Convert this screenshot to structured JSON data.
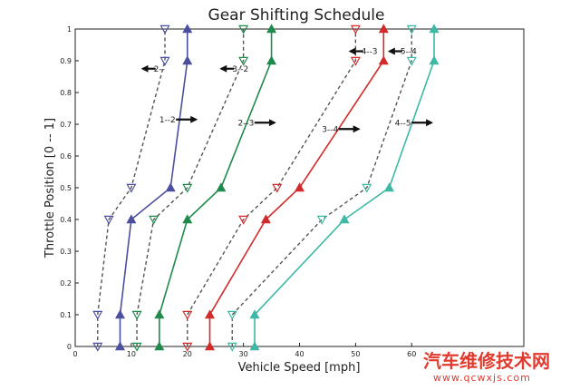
{
  "chart_data": {
    "type": "line",
    "title": "Gear Shifting Schedule",
    "xlabel": "Vehicle Speed [mph]",
    "ylabel": "Throttle Position [0 -- 1]",
    "xlim": [
      0,
      80
    ],
    "ylim": [
      0,
      1
    ],
    "xticks": [
      "0",
      "10",
      "20",
      "30",
      "40",
      "50",
      "60"
    ],
    "yticks": [
      "0",
      "0.1",
      "0.2",
      "0.3",
      "0.4",
      "0.5",
      "0.6",
      "0.7",
      "0.8",
      "0.9",
      "1"
    ],
    "grid": false,
    "series": [
      {
        "label": "1-2",
        "style": "solid",
        "marker": "triangle-up",
        "color": "#4b4f9e",
        "x": [
          8,
          8,
          10,
          17,
          20,
          20
        ],
        "y": [
          0,
          0.1,
          0.4,
          0.5,
          0.9,
          1
        ]
      },
      {
        "label": "2-1",
        "style": "dashed",
        "marker": "triangle-down",
        "color": "#4b4f9e",
        "x": [
          4,
          4,
          6,
          10,
          16,
          16
        ],
        "y": [
          0,
          0.1,
          0.4,
          0.5,
          0.9,
          1
        ]
      },
      {
        "label": "2-3",
        "style": "solid",
        "marker": "triangle-up",
        "color": "#1f8a4c",
        "x": [
          15,
          15,
          20,
          26,
          35,
          35
        ],
        "y": [
          0,
          0.1,
          0.4,
          0.5,
          0.9,
          1
        ]
      },
      {
        "label": "3-2",
        "style": "dashed",
        "marker": "triangle-down",
        "color": "#1f8a4c",
        "x": [
          11,
          11,
          14,
          20,
          30,
          30
        ],
        "y": [
          0,
          0.1,
          0.4,
          0.5,
          0.9,
          1
        ]
      },
      {
        "label": "3-4",
        "style": "solid",
        "marker": "triangle-up",
        "color": "#d12b2b",
        "x": [
          24,
          24,
          34,
          40,
          55,
          55
        ],
        "y": [
          0,
          0.1,
          0.4,
          0.5,
          0.9,
          1
        ]
      },
      {
        "label": "4-3",
        "style": "dashed",
        "marker": "triangle-down",
        "color": "#d12b2b",
        "x": [
          20,
          20,
          30,
          36,
          50,
          50
        ],
        "y": [
          0,
          0.1,
          0.4,
          0.5,
          0.9,
          1
        ]
      },
      {
        "label": "4-5",
        "style": "solid",
        "marker": "triangle-up",
        "color": "#3cb8a4",
        "x": [
          32,
          32,
          48,
          56,
          64,
          64
        ],
        "y": [
          0,
          0.1,
          0.4,
          0.5,
          0.9,
          1
        ]
      },
      {
        "label": "5-4",
        "style": "dashed",
        "marker": "triangle-down",
        "color": "#3cb8a4",
        "x": [
          28,
          28,
          44,
          52,
          60,
          60
        ],
        "y": [
          0,
          0.1,
          0.4,
          0.5,
          0.9,
          1
        ]
      }
    ],
    "annotations": [
      {
        "text": "2--",
        "x": 14,
        "y": 0.875,
        "arrow": "left"
      },
      {
        "text": "3--2",
        "x": 28,
        "y": 0.875,
        "arrow": "left"
      },
      {
        "text": "4--3",
        "x": 51,
        "y": 0.93,
        "arrow": "left"
      },
      {
        "text": "5--4",
        "x": 58,
        "y": 0.93,
        "arrow": "left"
      },
      {
        "text": "1--2",
        "x": 15,
        "y": 0.715,
        "arrow": "right"
      },
      {
        "text": "2--3",
        "x": 29,
        "y": 0.705,
        "arrow": "right"
      },
      {
        "text": "3--4",
        "x": 44,
        "y": 0.685,
        "arrow": "right"
      },
      {
        "text": "4--5",
        "x": 57,
        "y": 0.705,
        "arrow": "right"
      }
    ]
  },
  "watermark": {
    "line1": "汽车维修技术网",
    "line2": "www.qcwxjs.com"
  }
}
